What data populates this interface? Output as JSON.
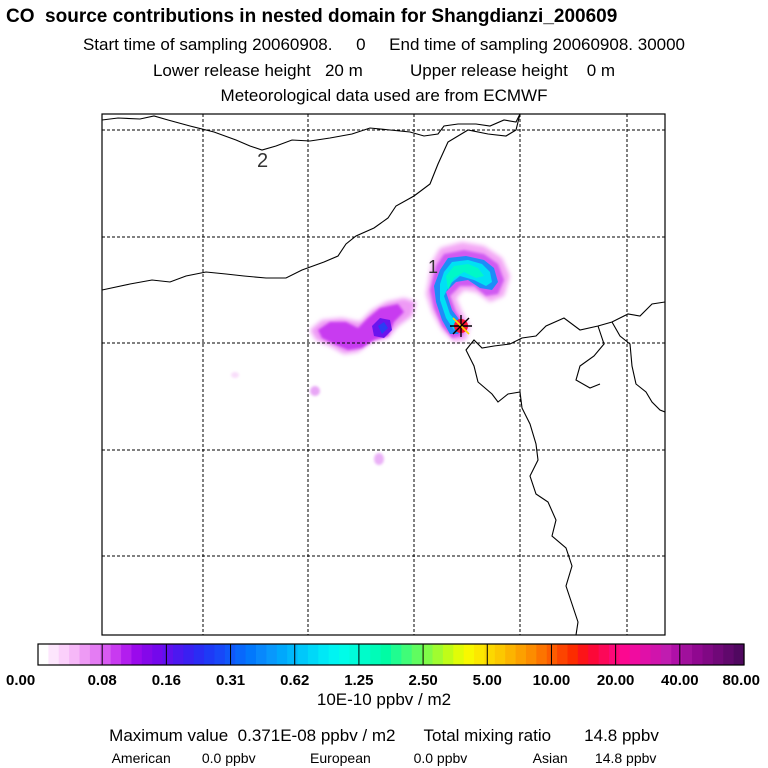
{
  "title": "CO  source contributions in nested domain for Shangdianzi_200609",
  "sampling": {
    "start_label": "Start time of sampling",
    "start_value": "20060908.     0",
    "end_label": "End time of sampling",
    "end_value": "20060908. 30000"
  },
  "release": {
    "lower_label": "Lower release height",
    "lower_value": "20 m",
    "upper_label": "Upper release height",
    "upper_value": "0 m"
  },
  "met_note": "Meteorological data used are from ECMWF",
  "map": {
    "region_labels": [
      "2",
      "1"
    ],
    "marker": "receptor-star"
  },
  "colorbar": {
    "tick_labels": [
      "0.00",
      "0.08",
      "0.16",
      "0.31",
      "0.62",
      "1.25",
      "2.50",
      "5.00",
      "10.00",
      "20.00",
      "40.00",
      "80.00"
    ],
    "unit": "10E-10 ppbv / m2",
    "colors": [
      "#ffffff",
      "#fde6fd",
      "#fbd0fb",
      "#f6b8f8",
      "#ee9af5",
      "#e47cf3",
      "#d85af2",
      "#c83af0",
      "#b21eee",
      "#9a0aec",
      "#8508ea",
      "#7408ec",
      "#6010ee",
      "#4c18f0",
      "#3a20f2",
      "#2a2cf4",
      "#1e3af6",
      "#1848f8",
      "#1058fa",
      "#0868fc",
      "#0278fc",
      "#0888fc",
      "#0898fc",
      "#00a8fc",
      "#00b8fc",
      "#00c8fa",
      "#00d8f8",
      "#00e8f6",
      "#00f4f2",
      "#00fce8",
      "#00fcda",
      "#00fcca",
      "#00fcb8",
      "#00fca4",
      "#20fc90",
      "#40fc78",
      "#60fc60",
      "#80fc48",
      "#a0fc30",
      "#c0fc18",
      "#e0fc08",
      "#f8f800",
      "#fce800",
      "#fcd800",
      "#fcc800",
      "#fcb400",
      "#fca000",
      "#fc8c00",
      "#fc7400",
      "#fc5c00",
      "#fc4400",
      "#fc2c00",
      "#fc1418",
      "#fc0838",
      "#fc0858",
      "#fc0878",
      "#fc0890",
      "#f00ca0",
      "#e010a8",
      "#d014ac",
      "#c01cb0",
      "#b010a8",
      "#a0109c",
      "#900890",
      "#800884",
      "#700878",
      "#60086c",
      "#500860"
    ]
  },
  "summary": {
    "max_label": "Maximum value",
    "max_value": "0.371E-08 ppbv / m2",
    "total_label": "Total mixing ratio",
    "total_value": "14.8 ppbv",
    "regions": [
      {
        "name": "American",
        "value": "0.0 ppbv"
      },
      {
        "name": "European",
        "value": "0.0 ppbv"
      },
      {
        "name": "Asian",
        "value": "14.8 ppbv"
      }
    ]
  }
}
